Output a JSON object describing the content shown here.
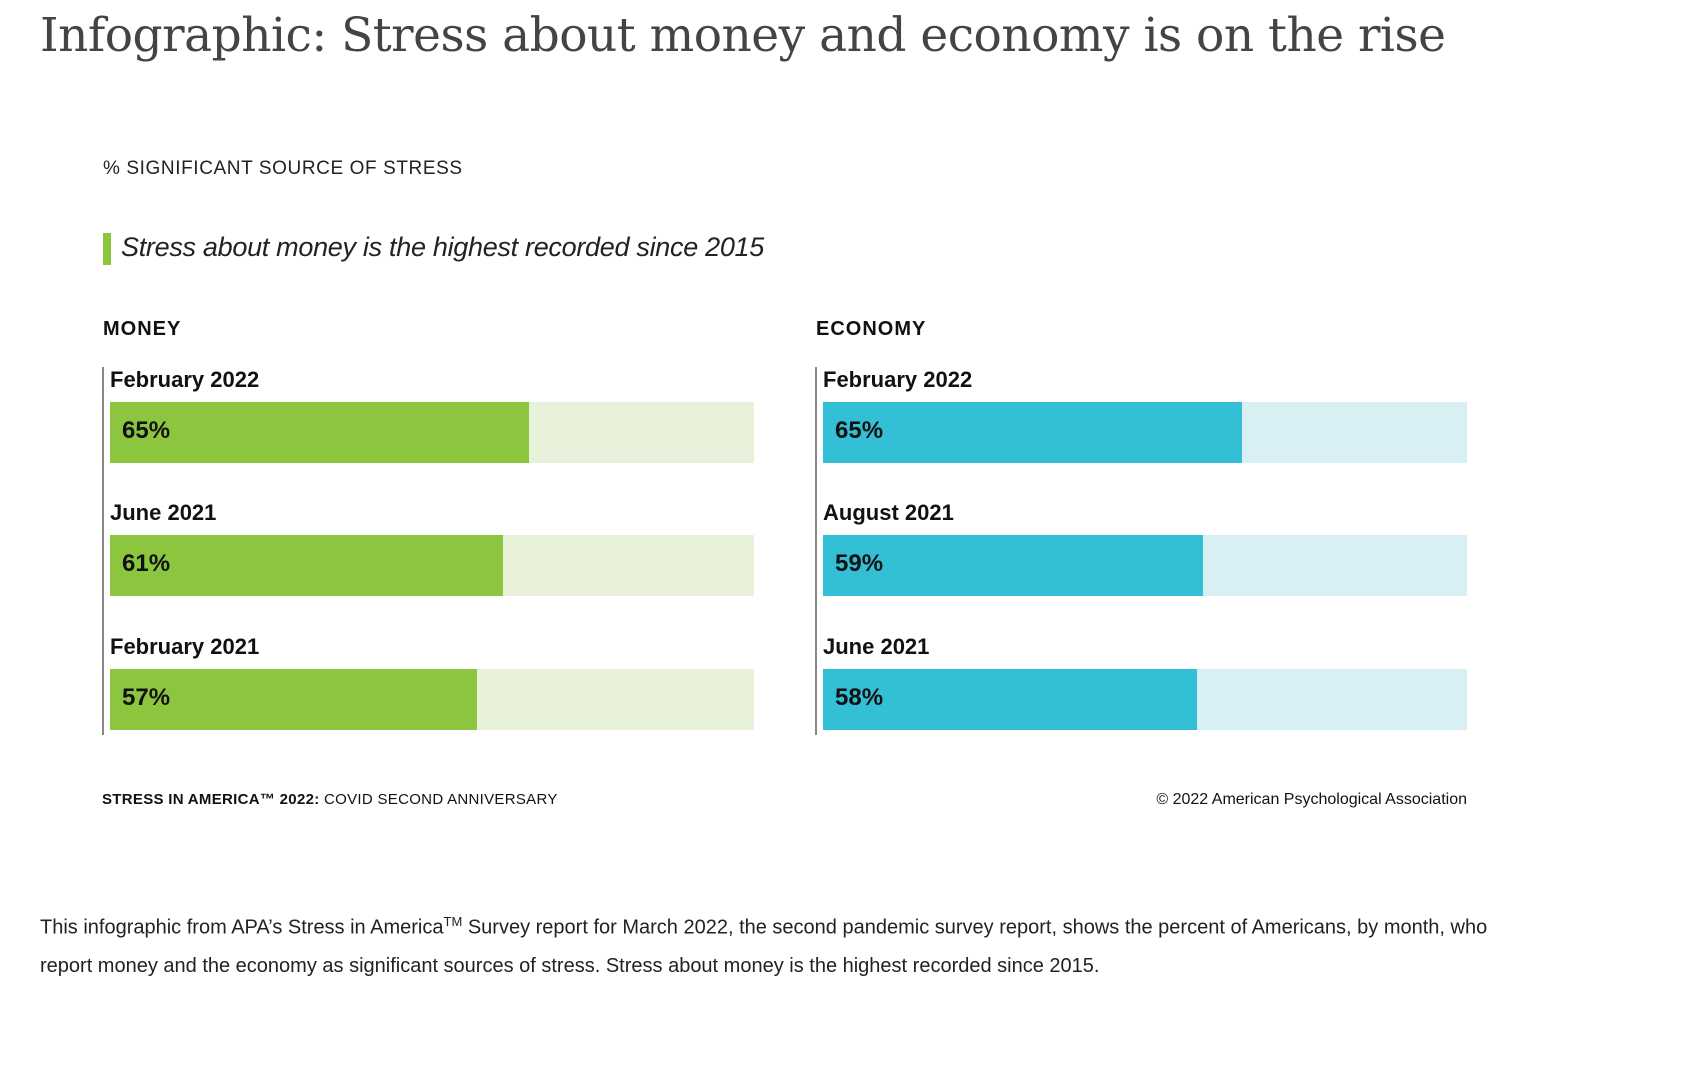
{
  "page_title": "Infographic: Stress about money and economy is on the rise",
  "chart_data": {
    "type": "bar",
    "title": "% SIGNIFICANT SOURCE OF STRESS",
    "callout": "Stress about money is the highest recorded since 2015",
    "ylim": [
      0,
      100
    ],
    "panels": [
      {
        "name": "MONEY",
        "color": "#8cc63f",
        "track_color": "#e8f2da",
        "categories": [
          "February 2022",
          "June 2021",
          "February 2021"
        ],
        "values": [
          65,
          61,
          57
        ],
        "labels": [
          "65%",
          "61%",
          "57%"
        ]
      },
      {
        "name": "ECONOMY",
        "color": "#33bfd6",
        "track_color": "#d8f0f4",
        "categories": [
          "February 2022",
          "August 2021",
          "June 2021"
        ],
        "values": [
          65,
          59,
          58
        ],
        "labels": [
          "65%",
          "59%",
          "58%"
        ]
      }
    ],
    "source_bold": "STRESS IN AMERICA™ 2022:",
    "source_rest": " COVID SECOND ANNIVERSARY",
    "copyright": "© 2022 American Psychological Association"
  },
  "caption": {
    "part1": "This infographic from APA’s Stress in America",
    "sup": "TM",
    "part2": " Survey report for March 2022, the second pandemic survey report, shows the percent of Americans, by month, who report money and the economy as significant sources of stress. Stress about money is the highest recorded since 2015."
  }
}
